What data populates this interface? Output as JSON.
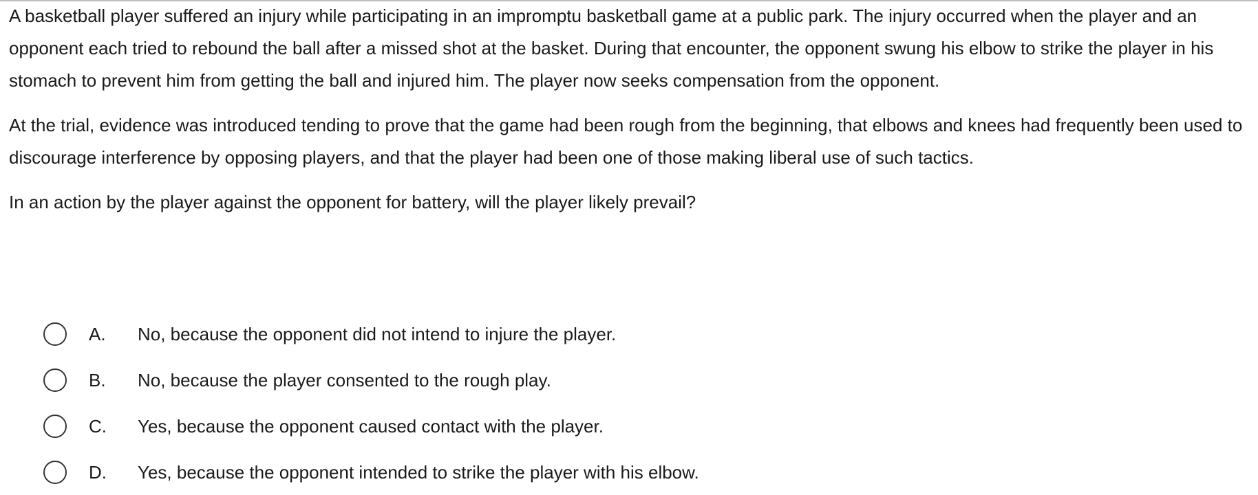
{
  "question": {
    "paragraphs": [
      "A basketball player suffered an injury while participating in an impromptu basketball game at a public park.  The injury occurred when the player and an opponent each tried to rebound the ball after a missed shot at the basket.  During that encounter, the opponent swung his elbow to strike the player in his stomach to prevent him from getting the ball and injured him.  The player now seeks compensation from the opponent.",
      "At the trial, evidence was introduced tending to prove that the game had been rough from the beginning, that elbows and knees had frequently been used to discourage interference by opposing players, and that the player had been one of those making liberal use of such tactics.",
      "In an action by the player against the opponent for battery, will the player likely prevail?"
    ]
  },
  "options": [
    {
      "letter": "A.",
      "text": "No, because the opponent did not intend to injure the player."
    },
    {
      "letter": "B.",
      "text": "No, because the player consented to the rough play."
    },
    {
      "letter": "C.",
      "text": "Yes, because the opponent caused contact with the player."
    },
    {
      "letter": "D.",
      "text": "Yes, because the opponent intended to strike the player with his elbow."
    }
  ]
}
